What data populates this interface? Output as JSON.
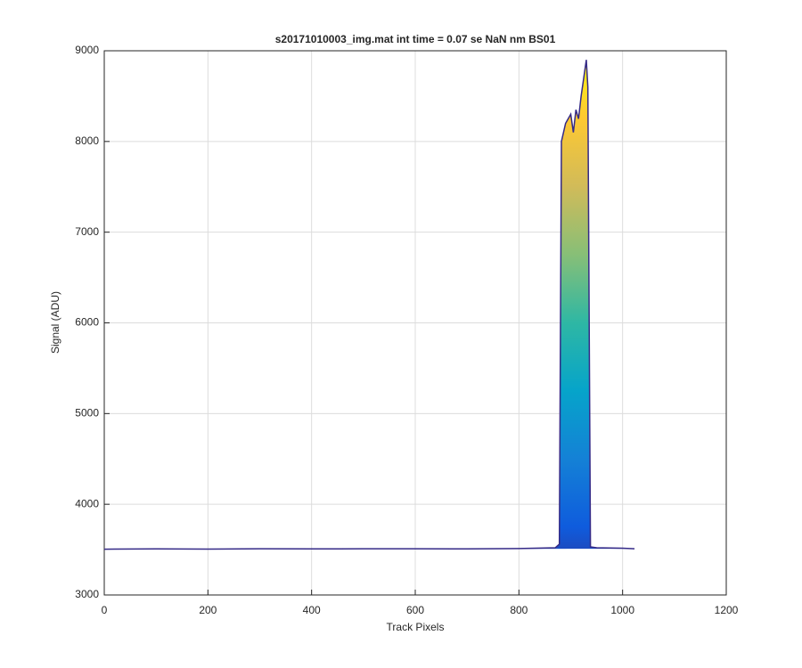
{
  "chart_data": {
    "type": "line",
    "title": "s20171010003_img.mat int time = 0.07 se  NaN nm BS01",
    "x_label": "Track Pixels",
    "y_label": "Signal (ADU)",
    "x": [
      0,
      100,
      200,
      300,
      400,
      500,
      600,
      700,
      800,
      870,
      878,
      882,
      890,
      900,
      905,
      910,
      915,
      920,
      925,
      930,
      933,
      938,
      950,
      1000,
      1023
    ],
    "series": [
      {
        "name": "Signal",
        "color": "#352a87",
        "values": [
          3505,
          3508,
          3506,
          3510,
          3508,
          3509,
          3510,
          3508,
          3512,
          3520,
          3560,
          8000,
          8200,
          8300,
          8100,
          8350,
          8250,
          8500,
          8700,
          8900,
          8600,
          3530,
          3520,
          3515,
          3510
        ]
      }
    ],
    "colormap": [
      "#352a87",
      "#0f5cdd",
      "#1481d6",
      "#06a4ca",
      "#2eb7a4",
      "#87bf77",
      "#d1bb59",
      "#fec832",
      "#f9fb0e"
    ],
    "xlim": [
      0,
      1200
    ],
    "ylim": [
      3000,
      9000
    ],
    "xticks": [
      0,
      200,
      400,
      600,
      800,
      1000,
      1200
    ],
    "yticks": [
      3000,
      4000,
      5000,
      6000,
      7000,
      8000,
      9000
    ],
    "grid": true
  }
}
